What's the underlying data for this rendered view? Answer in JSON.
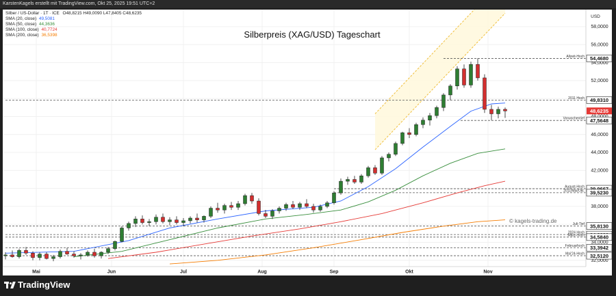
{
  "header": {
    "attribution": "KarstenKagels erstellt mit TradingView.com, Okt 25, 2025 19:51 UTC+2"
  },
  "legend": {
    "symbol": "Silber / US-Dollar · 1T · ICE",
    "ohlc": "O48,8215  H49,0090  L47,8405  C48,6235",
    "smas": [
      {
        "label": "SMA (20, close)",
        "value": "49,5081",
        "color": "#2962ff"
      },
      {
        "label": "SMA (50, close)",
        "value": "44,3636",
        "color": "#388e3c"
      },
      {
        "label": "SMA (100, close)",
        "value": "40,7724",
        "color": "#e53935"
      },
      {
        "label": "SMA (200, close)",
        "value": "36,5398",
        "color": "#f57c00"
      }
    ]
  },
  "watermark": "© kagels-trading.de",
  "branding": {
    "name": "TradingView"
  },
  "chart_data": {
    "type": "candlestick",
    "title": "Silberpreis (XAG/USD) Tageschart",
    "currency": "USD",
    "y_ticks": [
      "58,0000",
      "56,0000",
      "54,0000",
      "52,0000",
      "50,0000",
      "48,0000",
      "46,0000",
      "44,0000",
      "42,0000",
      "40,0000",
      "38,0000",
      "36,0000",
      "34,0000",
      "32,0000"
    ],
    "y_tick_values": [
      58,
      56,
      54,
      52,
      50,
      48,
      46,
      44,
      42,
      40,
      38,
      36,
      34,
      32
    ],
    "ylim": [
      31.3,
      59.9
    ],
    "x_labels": [
      {
        "label": "Mai",
        "index": 9
      },
      {
        "label": "Jun",
        "index": 31
      },
      {
        "label": "Jul",
        "index": 52
      },
      {
        "label": "Aug",
        "index": 75
      },
      {
        "label": "Sep",
        "index": 96
      },
      {
        "label": "Okt",
        "index": 118
      },
      {
        "label": "Nov",
        "index": 141
      }
    ],
    "x_count": 156,
    "current_price": {
      "value": 48.6235,
      "label": "48,6235",
      "color": "#e53935"
    },
    "levels": [
      {
        "value": 54.468,
        "label": "54,4680",
        "annotation": "Allzeit-Hoch",
        "x_start": 128
      },
      {
        "value": 49.831,
        "label": "49,8310",
        "annotation": "2011 Hoch",
        "x_start": 0
      },
      {
        "value": 47.5648,
        "label": "47,5648",
        "annotation": "Vorwochentief",
        "x_start": 133
      },
      {
        "value": 39.9667,
        "label": "39,9667",
        "annotation": "August-Hoch",
        "x_start": 96
      },
      {
        "value": 39.523,
        "label": "39,5230",
        "annotation": "2011/Mai/Okt.",
        "x_start": 96
      },
      {
        "value": 35.813,
        "label": "35,8130",
        "annotation": "Juli-Tief",
        "x_start": 0
      },
      {
        "value": 34.863,
        "label": "34,8630",
        "annotation": "2024 Hoch",
        "x_start": 0
      },
      {
        "value": 34.584,
        "label": "34,5840",
        "annotation": "März-Hoch",
        "x_start": 0
      },
      {
        "value": 33.3942,
        "label": "33,3942",
        "annotation": "Februarhoch",
        "x_start": 0
      },
      {
        "value": 32.512,
        "label": "32,5120",
        "annotation": "Mai'24-Hoch",
        "x_start": 0
      }
    ],
    "channel": {
      "lower": {
        "x0": 108,
        "y0": 44.3,
        "x1": 146,
        "y1": 59.5
      },
      "upper": {
        "x0": 108,
        "y0": 48.3,
        "x1": 146,
        "y1": 63.5
      }
    },
    "candles": [
      {
        "x": 0,
        "o": 32.5,
        "h": 32.9,
        "l": 32.1,
        "c": 32.6
      },
      {
        "x": 2,
        "o": 32.6,
        "h": 33.1,
        "l": 32.3,
        "c": 32.4
      },
      {
        "x": 4,
        "o": 32.4,
        "h": 33.3,
        "l": 32.2,
        "c": 33.1
      },
      {
        "x": 6,
        "o": 33.1,
        "h": 33.5,
        "l": 32.6,
        "c": 32.8
      },
      {
        "x": 8,
        "o": 32.8,
        "h": 33.0,
        "l": 32.0,
        "c": 32.3
      },
      {
        "x": 10,
        "o": 32.3,
        "h": 32.9,
        "l": 32.0,
        "c": 32.7
      },
      {
        "x": 12,
        "o": 32.7,
        "h": 32.9,
        "l": 32.1,
        "c": 32.2
      },
      {
        "x": 14,
        "o": 32.2,
        "h": 32.6,
        "l": 31.9,
        "c": 32.4
      },
      {
        "x": 16,
        "o": 32.4,
        "h": 33.2,
        "l": 32.2,
        "c": 33.0
      },
      {
        "x": 18,
        "o": 33.0,
        "h": 33.4,
        "l": 32.6,
        "c": 32.7
      },
      {
        "x": 20,
        "o": 32.7,
        "h": 33.0,
        "l": 32.3,
        "c": 32.5
      },
      {
        "x": 22,
        "o": 32.5,
        "h": 32.8,
        "l": 32.1,
        "c": 32.6
      },
      {
        "x": 24,
        "o": 32.6,
        "h": 33.1,
        "l": 32.4,
        "c": 32.9
      },
      {
        "x": 26,
        "o": 32.9,
        "h": 33.3,
        "l": 32.3,
        "c": 32.5
      },
      {
        "x": 28,
        "o": 32.5,
        "h": 33.0,
        "l": 32.2,
        "c": 32.9
      },
      {
        "x": 30,
        "o": 32.9,
        "h": 33.5,
        "l": 32.7,
        "c": 33.3
      },
      {
        "x": 32,
        "o": 33.3,
        "h": 34.2,
        "l": 33.1,
        "c": 34.1
      },
      {
        "x": 34,
        "o": 34.1,
        "h": 35.8,
        "l": 34.0,
        "c": 35.6
      },
      {
        "x": 36,
        "o": 35.6,
        "h": 36.3,
        "l": 35.3,
        "c": 36.1
      },
      {
        "x": 38,
        "o": 36.1,
        "h": 36.9,
        "l": 35.7,
        "c": 36.6
      },
      {
        "x": 40,
        "o": 36.6,
        "h": 37.0,
        "l": 36.0,
        "c": 36.2
      },
      {
        "x": 42,
        "o": 36.2,
        "h": 36.6,
        "l": 35.8,
        "c": 36.3
      },
      {
        "x": 44,
        "o": 36.3,
        "h": 37.1,
        "l": 36.0,
        "c": 36.8
      },
      {
        "x": 46,
        "o": 36.8,
        "h": 37.2,
        "l": 36.1,
        "c": 36.3
      },
      {
        "x": 48,
        "o": 36.3,
        "h": 36.8,
        "l": 35.9,
        "c": 36.5
      },
      {
        "x": 50,
        "o": 36.5,
        "h": 36.9,
        "l": 36.0,
        "c": 36.2
      },
      {
        "x": 52,
        "o": 36.2,
        "h": 36.7,
        "l": 35.8,
        "c": 36.4
      },
      {
        "x": 54,
        "o": 36.4,
        "h": 36.9,
        "l": 36.1,
        "c": 36.7
      },
      {
        "x": 56,
        "o": 36.7,
        "h": 37.2,
        "l": 36.2,
        "c": 36.5
      },
      {
        "x": 58,
        "o": 36.5,
        "h": 37.0,
        "l": 36.2,
        "c": 36.9
      },
      {
        "x": 60,
        "o": 36.9,
        "h": 38.0,
        "l": 36.7,
        "c": 37.8
      },
      {
        "x": 62,
        "o": 37.8,
        "h": 38.4,
        "l": 37.3,
        "c": 37.6
      },
      {
        "x": 64,
        "o": 37.6,
        "h": 38.3,
        "l": 37.2,
        "c": 38.1
      },
      {
        "x": 66,
        "o": 38.1,
        "h": 38.5,
        "l": 37.6,
        "c": 37.9
      },
      {
        "x": 68,
        "o": 37.9,
        "h": 38.6,
        "l": 37.6,
        "c": 38.3
      },
      {
        "x": 70,
        "o": 38.3,
        "h": 39.4,
        "l": 38.1,
        "c": 39.2
      },
      {
        "x": 72,
        "o": 39.2,
        "h": 39.5,
        "l": 38.3,
        "c": 38.6
      },
      {
        "x": 74,
        "o": 38.6,
        "h": 38.9,
        "l": 37.0,
        "c": 37.2
      },
      {
        "x": 76,
        "o": 37.2,
        "h": 37.6,
        "l": 36.7,
        "c": 36.9
      },
      {
        "x": 78,
        "o": 36.9,
        "h": 37.7,
        "l": 36.6,
        "c": 37.5
      },
      {
        "x": 80,
        "o": 37.5,
        "h": 38.0,
        "l": 37.2,
        "c": 37.8
      },
      {
        "x": 82,
        "o": 37.8,
        "h": 38.4,
        "l": 37.5,
        "c": 38.2
      },
      {
        "x": 84,
        "o": 38.2,
        "h": 38.6,
        "l": 37.7,
        "c": 37.9
      },
      {
        "x": 86,
        "o": 37.9,
        "h": 38.5,
        "l": 37.6,
        "c": 38.3
      },
      {
        "x": 88,
        "o": 38.3,
        "h": 38.8,
        "l": 37.8,
        "c": 38.0
      },
      {
        "x": 90,
        "o": 38.0,
        "h": 38.3,
        "l": 37.3,
        "c": 37.6
      },
      {
        "x": 92,
        "o": 37.6,
        "h": 38.2,
        "l": 37.4,
        "c": 38.0
      },
      {
        "x": 94,
        "o": 38.0,
        "h": 38.6,
        "l": 37.8,
        "c": 38.4
      },
      {
        "x": 96,
        "o": 38.4,
        "h": 39.7,
        "l": 38.2,
        "c": 39.5
      },
      {
        "x": 98,
        "o": 39.5,
        "h": 41.1,
        "l": 39.3,
        "c": 40.8
      },
      {
        "x": 100,
        "o": 40.8,
        "h": 41.3,
        "l": 40.4,
        "c": 41.0
      },
      {
        "x": 102,
        "o": 41.0,
        "h": 41.4,
        "l": 40.5,
        "c": 40.7
      },
      {
        "x": 104,
        "o": 40.7,
        "h": 41.6,
        "l": 40.5,
        "c": 41.4
      },
      {
        "x": 106,
        "o": 41.4,
        "h": 42.5,
        "l": 41.2,
        "c": 42.3
      },
      {
        "x": 108,
        "o": 42.3,
        "h": 42.6,
        "l": 41.5,
        "c": 41.7
      },
      {
        "x": 110,
        "o": 41.7,
        "h": 43.6,
        "l": 41.5,
        "c": 43.4
      },
      {
        "x": 112,
        "o": 43.4,
        "h": 44.0,
        "l": 43.0,
        "c": 43.8
      },
      {
        "x": 114,
        "o": 43.8,
        "h": 45.2,
        "l": 43.6,
        "c": 45.0
      },
      {
        "x": 116,
        "o": 45.0,
        "h": 46.3,
        "l": 44.8,
        "c": 46.2
      },
      {
        "x": 118,
        "o": 46.2,
        "h": 46.7,
        "l": 45.6,
        "c": 46.0
      },
      {
        "x": 120,
        "o": 46.0,
        "h": 47.3,
        "l": 45.8,
        "c": 47.1
      },
      {
        "x": 122,
        "o": 47.1,
        "h": 47.9,
        "l": 46.7,
        "c": 47.6
      },
      {
        "x": 124,
        "o": 47.6,
        "h": 48.4,
        "l": 47.0,
        "c": 48.1
      },
      {
        "x": 126,
        "o": 48.1,
        "h": 49.2,
        "l": 47.8,
        "c": 49.0
      },
      {
        "x": 128,
        "o": 49.0,
        "h": 50.6,
        "l": 48.6,
        "c": 50.4
      },
      {
        "x": 130,
        "o": 50.4,
        "h": 51.6,
        "l": 49.8,
        "c": 51.4
      },
      {
        "x": 132,
        "o": 51.4,
        "h": 53.6,
        "l": 51.0,
        "c": 53.3
      },
      {
        "x": 134,
        "o": 53.3,
        "h": 53.8,
        "l": 51.2,
        "c": 51.5
      },
      {
        "x": 136,
        "o": 51.5,
        "h": 54.1,
        "l": 51.2,
        "c": 53.8
      },
      {
        "x": 138,
        "o": 53.8,
        "h": 54.47,
        "l": 52.0,
        "c": 52.3
      },
      {
        "x": 140,
        "o": 52.3,
        "h": 52.7,
        "l": 48.4,
        "c": 48.8
      },
      {
        "x": 142,
        "o": 48.8,
        "h": 49.3,
        "l": 47.6,
        "c": 48.3
      },
      {
        "x": 144,
        "o": 48.3,
        "h": 49.1,
        "l": 47.8,
        "c": 48.8
      },
      {
        "x": 146,
        "o": 48.8,
        "h": 49.0,
        "l": 47.84,
        "c": 48.62
      }
    ],
    "sma": [
      {
        "name": "SMA (20, close)",
        "color": "#2962ff",
        "points": [
          [
            0,
            32.8
          ],
          [
            20,
            33.0
          ],
          [
            36,
            34.2
          ],
          [
            48,
            35.6
          ],
          [
            62,
            36.6
          ],
          [
            76,
            37.5
          ],
          [
            90,
            37.9
          ],
          [
            98,
            38.6
          ],
          [
            106,
            40.2
          ],
          [
            114,
            42.2
          ],
          [
            122,
            44.6
          ],
          [
            130,
            46.9
          ],
          [
            136,
            48.6
          ],
          [
            142,
            49.4
          ],
          [
            146,
            49.5
          ]
        ]
      },
      {
        "name": "SMA (50, close)",
        "color": "#388e3c",
        "points": [
          [
            20,
            32.4
          ],
          [
            34,
            33.0
          ],
          [
            48,
            34.3
          ],
          [
            62,
            35.6
          ],
          [
            76,
            36.6
          ],
          [
            88,
            37.1
          ],
          [
            98,
            37.6
          ],
          [
            106,
            38.5
          ],
          [
            114,
            39.8
          ],
          [
            122,
            41.4
          ],
          [
            130,
            42.8
          ],
          [
            138,
            43.9
          ],
          [
            146,
            44.4
          ]
        ]
      },
      {
        "name": "SMA (100, close)",
        "color": "#e53935",
        "points": [
          [
            30,
            32.2
          ],
          [
            44,
            32.9
          ],
          [
            58,
            33.8
          ],
          [
            72,
            34.7
          ],
          [
            86,
            35.5
          ],
          [
            98,
            36.3
          ],
          [
            110,
            37.2
          ],
          [
            122,
            38.4
          ],
          [
            132,
            39.5
          ],
          [
            140,
            40.3
          ],
          [
            146,
            40.8
          ]
        ]
      },
      {
        "name": "SMA (200, close)",
        "color": "#f57c00",
        "points": [
          [
            48,
            31.6
          ],
          [
            62,
            32.0
          ],
          [
            76,
            32.6
          ],
          [
            90,
            33.4
          ],
          [
            104,
            34.3
          ],
          [
            116,
            35.1
          ],
          [
            128,
            35.8
          ],
          [
            138,
            36.3
          ],
          [
            146,
            36.5
          ]
        ]
      }
    ]
  }
}
